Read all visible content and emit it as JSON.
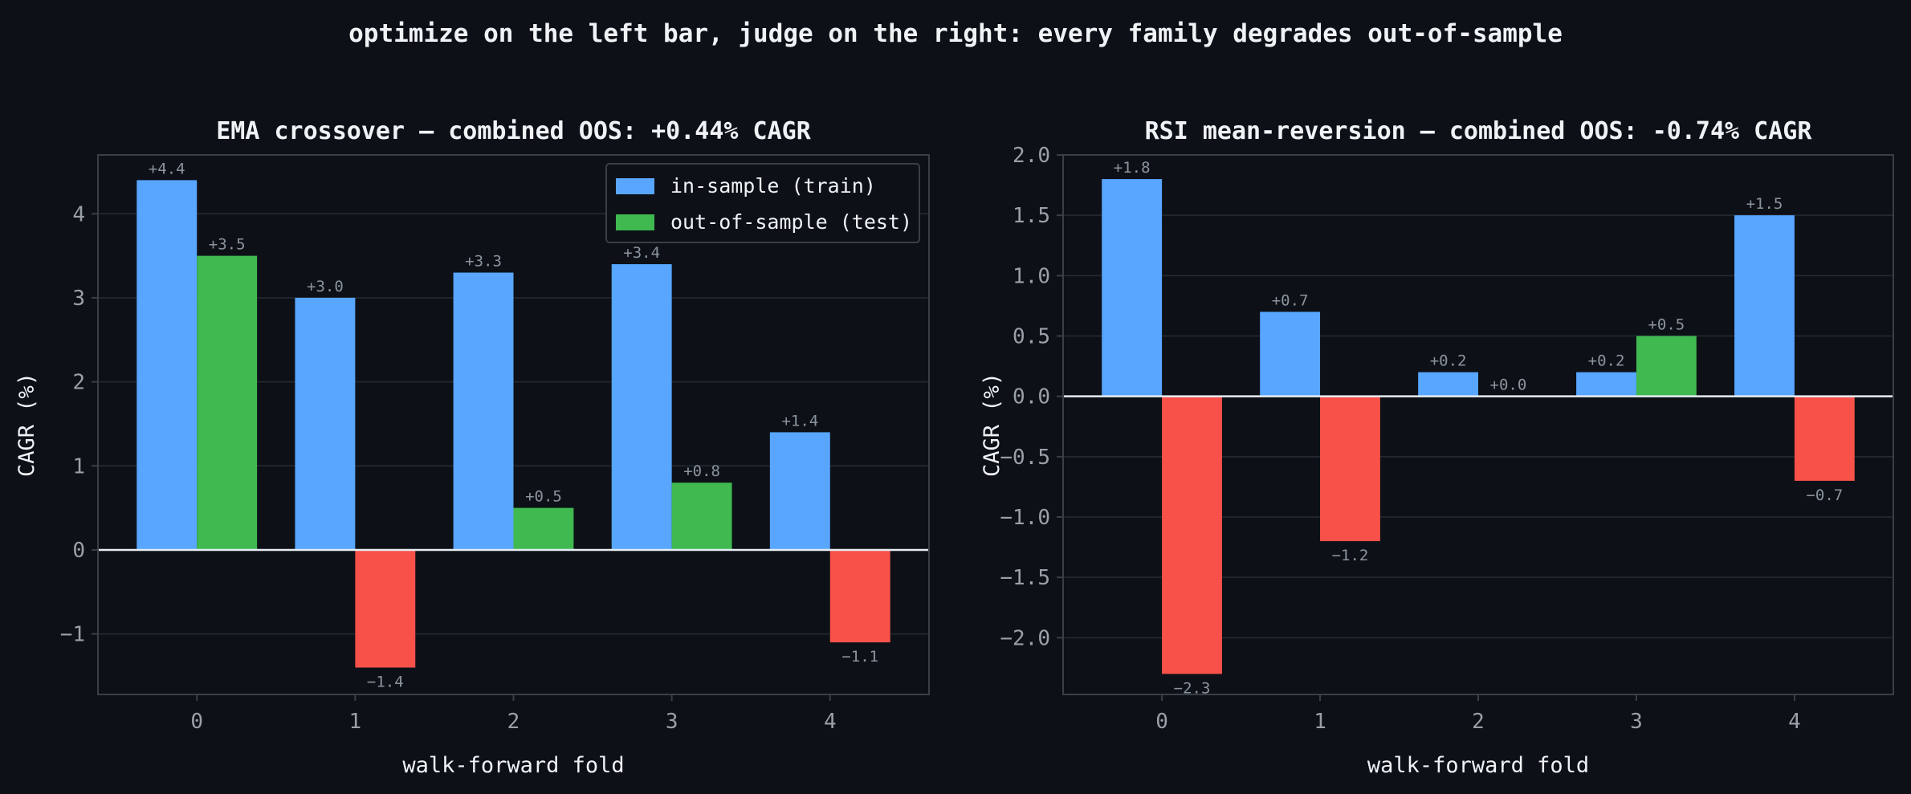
{
  "suptitle": "optimize on the left bar, judge on the right: every family degrades out-of-sample",
  "colors": {
    "background": "#0d1117",
    "panel_frame": "#3a3f47",
    "grid": "#262b33",
    "axis_text": "#9aa0a8",
    "title_text": "#f0f3f6",
    "in_sample": "#58a6ff",
    "oos_positive": "#3fb950",
    "oos_negative": "#f85149",
    "zero_line": "#e6edf3",
    "label_text": "#8b949e"
  },
  "legend": {
    "in_sample_label": "in-sample (train)",
    "oos_label": "out-of-sample (test)",
    "placement": "top-right of left panel"
  },
  "chart_data": [
    {
      "type": "bar",
      "title": "EMA crossover — combined OOS: +0.44% CAGR",
      "xlabel": "walk-forward fold",
      "ylabel": "CAGR (%)",
      "categories": [
        "0",
        "1",
        "2",
        "3",
        "4"
      ],
      "ylim": [
        -1.72,
        4.7
      ],
      "yticks": [
        -1,
        0,
        1,
        2,
        3,
        4
      ],
      "ytick_labels": [
        "−1",
        "0",
        "1",
        "2",
        "3",
        "4"
      ],
      "grid": true,
      "legend": true,
      "series": [
        {
          "name": "in-sample (train)",
          "values": [
            4.4,
            3.0,
            3.3,
            3.4,
            1.4
          ],
          "labels": [
            "+4.4",
            "+3.0",
            "+3.3",
            "+3.4",
            "+1.4"
          ]
        },
        {
          "name": "out-of-sample (test)",
          "values": [
            3.5,
            -1.4,
            0.5,
            0.8,
            -1.1
          ],
          "labels": [
            "+3.5",
            "−1.4",
            "+0.5",
            "+0.8",
            "−1.1"
          ]
        }
      ]
    },
    {
      "type": "bar",
      "title": "RSI mean-reversion — combined OOS: -0.74% CAGR",
      "xlabel": "walk-forward fold",
      "ylabel": "CAGR (%)",
      "categories": [
        "0",
        "1",
        "2",
        "3",
        "4"
      ],
      "ylim": [
        -2.47,
        2.0
      ],
      "yticks": [
        -2.0,
        -1.5,
        -1.0,
        -0.5,
        0.0,
        0.5,
        1.0,
        1.5,
        2.0
      ],
      "ytick_labels": [
        "−2.0",
        "−1.5",
        "−1.0",
        "−0.5",
        "0.0",
        "0.5",
        "1.0",
        "1.5",
        "2.0"
      ],
      "grid": true,
      "legend": false,
      "series": [
        {
          "name": "in-sample (train)",
          "values": [
            1.8,
            0.7,
            0.2,
            0.2,
            1.5
          ],
          "labels": [
            "+1.8",
            "+0.7",
            "+0.2",
            "+0.2",
            "+1.5"
          ]
        },
        {
          "name": "out-of-sample (test)",
          "values": [
            -2.3,
            -1.2,
            0.0,
            0.5,
            -0.7
          ],
          "labels": [
            "−2.3",
            "−1.2",
            "+0.0",
            "+0.5",
            "−0.7"
          ]
        }
      ]
    }
  ]
}
